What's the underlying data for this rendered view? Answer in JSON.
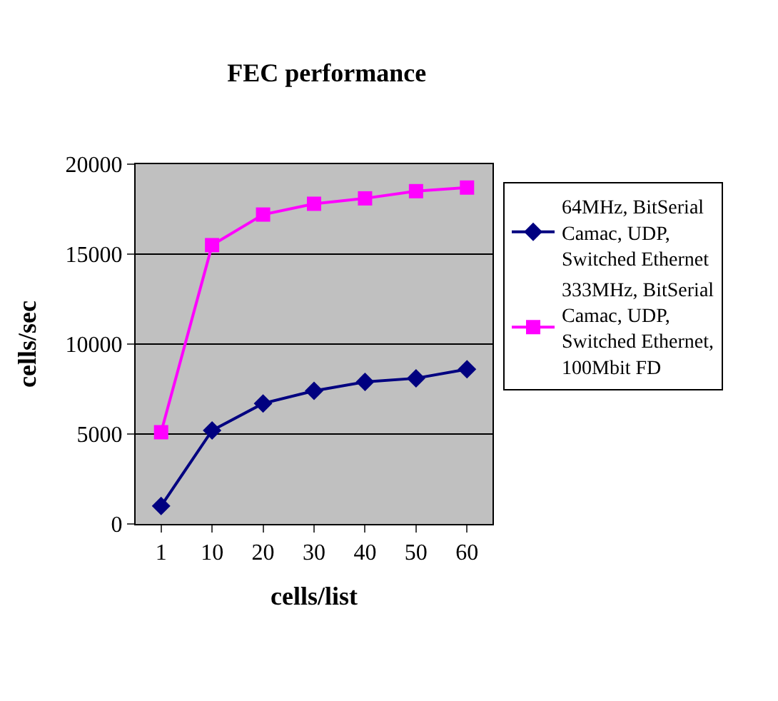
{
  "chart_data": {
    "type": "line",
    "title": "FEC performance",
    "xlabel": "cells/list",
    "ylabel": "cells/sec",
    "categories": [
      "1",
      "10",
      "20",
      "30",
      "40",
      "50",
      "60"
    ],
    "series": [
      {
        "name": "64MHz, BitSerial Camac, UDP, Switched Ethernet",
        "color": "#000080",
        "marker": "diamond",
        "values": [
          1000,
          5200,
          6700,
          7400,
          7900,
          8100,
          8600
        ]
      },
      {
        "name": "333MHz, BitSerial Camac, UDP, Switched Ethernet, 100Mbit FD",
        "color": "#ff00ff",
        "marker": "square",
        "values": [
          5100,
          15500,
          17200,
          17800,
          18100,
          18500,
          18700
        ]
      }
    ],
    "ylim": [
      0,
      20000
    ],
    "yticks": [
      0,
      5000,
      10000,
      15000,
      20000
    ],
    "grid": "y",
    "legend": "right",
    "line_style": "solid"
  }
}
